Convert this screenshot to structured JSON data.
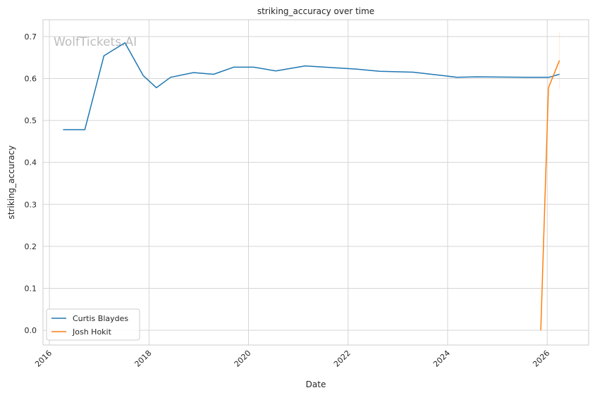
{
  "chart_data": {
    "type": "line",
    "title": "striking_accuracy over time",
    "xlabel": "Date",
    "ylabel": "striking_accuracy",
    "watermark": "WolfTickets.AI",
    "xlim": [
      "2015-11-15",
      "2026-11-01"
    ],
    "ylim": [
      -0.035,
      0.74
    ],
    "x_ticks": [
      "2016",
      "2018",
      "2020",
      "2022",
      "2024",
      "2026"
    ],
    "y_ticks": [
      "0.0",
      "0.1",
      "0.2",
      "0.3",
      "0.4",
      "0.5",
      "0.6",
      "0.7"
    ],
    "grid": true,
    "legend_position": "lower-left",
    "colors": {
      "Curtis Blaydes": "#1f77b4",
      "Josh Hokit": "#ff7f0e",
      "grid": "#d5d5d5",
      "spine": "#cccccc"
    },
    "series": [
      {
        "name": "Curtis Blaydes",
        "x": [
          "2016-04-10",
          "2016-09-17",
          "2017-02-04",
          "2017-07-08",
          "2017-11-19",
          "2018-02-24",
          "2018-06-09",
          "2018-11-24",
          "2019-04-20",
          "2019-09-14",
          "2020-02-08",
          "2020-07-19",
          "2021-02-20",
          "2021-09-04",
          "2022-03-12",
          "2022-08-20",
          "2023-04-22",
          "2024-03-09",
          "2024-08-03",
          "2025-08-01",
          "2026-01-15",
          "2026-04-01"
        ],
        "y": [
          0.478,
          0.478,
          0.654,
          0.685,
          0.607,
          0.578,
          0.603,
          0.614,
          0.61,
          0.627,
          0.627,
          0.618,
          0.63,
          0.626,
          0.622,
          0.617,
          0.615,
          0.603,
          0.604,
          0.603,
          0.603,
          0.61
        ]
      },
      {
        "name": "Josh Hokit",
        "x": [
          "2025-11-15",
          "2026-01-10",
          "2026-04-01"
        ],
        "y": [
          0.0,
          0.578,
          0.643
        ]
      }
    ]
  }
}
